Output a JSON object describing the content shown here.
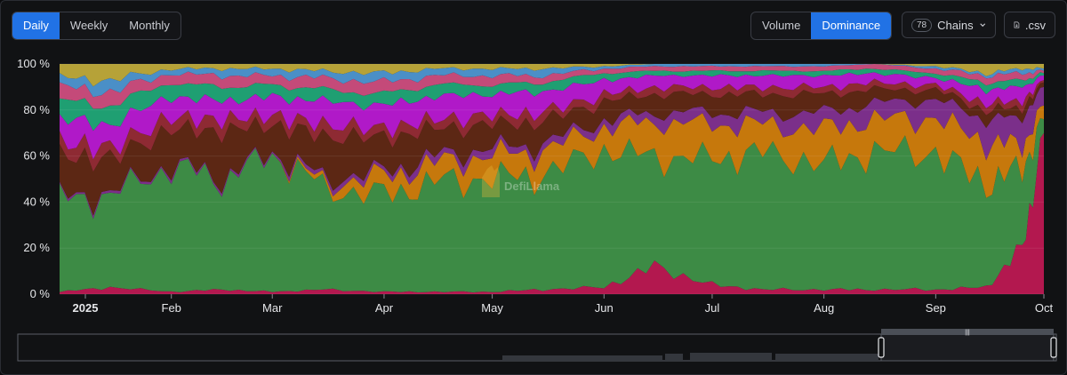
{
  "controls": {
    "period_tabs": [
      "Daily",
      "Weekly",
      "Monthly"
    ],
    "active_period": "Daily",
    "metric_tabs": [
      "Volume",
      "Dominance"
    ],
    "active_metric": "Dominance",
    "chains_count": "78",
    "chains_label": "Chains",
    "csv_label": ".csv"
  },
  "watermark": "DefiLlama",
  "colors": {
    "accent": "#2172e5",
    "series": [
      "#b3184f",
      "#3d8b45",
      "#c6780c",
      "#7b2f8a",
      "#5c2714",
      "#8e2a33",
      "#b019c8",
      "#1f9f72",
      "#c44a79",
      "#4a8fc7",
      "#b6a238"
    ]
  },
  "chart_data": {
    "type": "area",
    "stacked": true,
    "percent": true,
    "yticks": [
      "0 %",
      "20 %",
      "40 %",
      "60 %",
      "80 %",
      "100 %"
    ],
    "ylim": [
      0,
      100
    ],
    "xticks": [
      "2025",
      "Feb",
      "Mar",
      "Apr",
      "May",
      "Jun",
      "Jul",
      "Aug",
      "Sep",
      "Oct"
    ],
    "xlabel": "",
    "ylabel": "",
    "x": [
      "2025-01-01",
      "2025-01-15",
      "2025-02-01",
      "2025-02-15",
      "2025-03-01",
      "2025-03-15",
      "2025-04-01",
      "2025-04-15",
      "2025-05-01",
      "2025-05-15",
      "2025-06-01",
      "2025-06-15",
      "2025-07-01",
      "2025-07-15",
      "2025-08-01",
      "2025-08-15",
      "2025-09-01",
      "2025-09-15",
      "2025-09-25",
      "2025-10-01"
    ],
    "series": [
      {
        "values": [
          1,
          3,
          1,
          2,
          1,
          2,
          1,
          1,
          1,
          2,
          3,
          12,
          4,
          2,
          2,
          2,
          2,
          3,
          20,
          70
        ]
      },
      {
        "values": [
          40,
          40,
          55,
          48,
          60,
          45,
          42,
          48,
          50,
          50,
          60,
          48,
          55,
          60,
          55,
          60,
          60,
          45,
          35,
          6
        ]
      },
      {
        "values": [
          0,
          0,
          0,
          0,
          0,
          2,
          8,
          8,
          10,
          10,
          10,
          15,
          15,
          12,
          15,
          14,
          15,
          18,
          10,
          6
        ]
      },
      {
        "values": [
          1,
          1,
          1,
          1,
          1,
          2,
          2,
          3,
          3,
          3,
          3,
          4,
          5,
          5,
          7,
          7,
          8,
          10,
          12,
          8
        ]
      },
      {
        "values": [
          18,
          15,
          15,
          20,
          12,
          18,
          15,
          12,
          10,
          10,
          8,
          8,
          8,
          8,
          8,
          6,
          4,
          4,
          4,
          2
        ]
      },
      {
        "values": [
          6,
          5,
          5,
          5,
          4,
          5,
          4,
          4,
          4,
          4,
          3,
          3,
          3,
          3,
          3,
          3,
          2,
          3,
          3,
          1
        ]
      },
      {
        "values": [
          10,
          10,
          9,
          8,
          8,
          10,
          10,
          10,
          9,
          9,
          6,
          5,
          5,
          5,
          5,
          4,
          3,
          6,
          6,
          2
        ]
      },
      {
        "values": [
          8,
          8,
          6,
          6,
          5,
          5,
          5,
          5,
          4,
          4,
          3,
          2,
          2,
          2,
          2,
          2,
          2,
          3,
          3,
          1
        ]
      },
      {
        "values": [
          6,
          6,
          4,
          5,
          4,
          5,
          5,
          4,
          4,
          3,
          2,
          2,
          2,
          2,
          2,
          2,
          2,
          3,
          3,
          1
        ]
      },
      {
        "values": [
          4,
          5,
          2,
          3,
          3,
          3,
          4,
          3,
          3,
          3,
          1,
          1,
          1,
          1,
          1,
          0,
          1,
          1,
          2,
          1
        ]
      },
      {
        "values": [
          6,
          7,
          2,
          2,
          2,
          3,
          4,
          2,
          2,
          2,
          1,
          0,
          0,
          0,
          0,
          0,
          1,
          4,
          2,
          2
        ]
      }
    ]
  }
}
